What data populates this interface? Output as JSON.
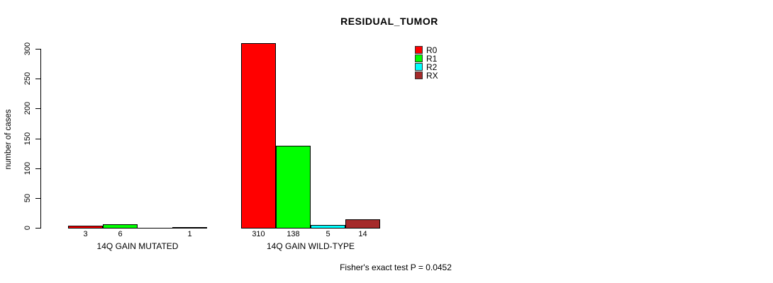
{
  "chart_data": {
    "type": "bar",
    "title": "RESIDUAL_TUMOR",
    "ylabel": "number of cases",
    "xlabel": "",
    "categories": [
      "14Q GAIN MUTATED",
      "14Q GAIN WILD-TYPE"
    ],
    "series": [
      {
        "name": "R0",
        "color": "#ff0000",
        "values": [
          3,
          310
        ]
      },
      {
        "name": "R1",
        "color": "#00ff00",
        "values": [
          6,
          138
        ]
      },
      {
        "name": "R2",
        "color": "#00ffff",
        "values": [
          0,
          5
        ]
      },
      {
        "name": "RX",
        "color": "#a52a2a",
        "values": [
          1,
          14
        ]
      }
    ],
    "bar_labels": [
      [
        "3",
        "6",
        "",
        "1"
      ],
      [
        "310",
        "138",
        "5",
        "14"
      ]
    ],
    "y_ticks": [
      0,
      50,
      100,
      150,
      200,
      250,
      300
    ],
    "ylim": [
      0,
      300
    ],
    "grid": false,
    "legend_position": "top-right",
    "annotation": "Fisher's exact test P = 0.0452"
  }
}
